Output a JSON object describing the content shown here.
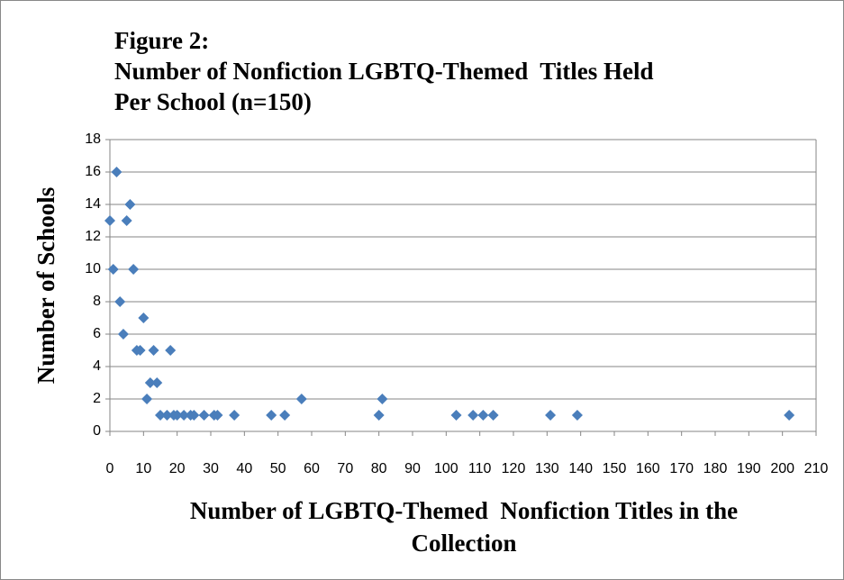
{
  "chart_data": {
    "type": "scatter",
    "title": [
      "Figure 2:",
      "Number of Nonfiction LGBTQ-Themed  Titles Held",
      "Per School (n=150)"
    ],
    "x_label": [
      "Number of LGBTQ-Themed  Nonfiction Titles in the",
      "Collection"
    ],
    "y_label": "Number of Schools",
    "color": "#4a7ebb",
    "grid": true,
    "x": [
      0,
      1,
      2,
      3,
      4,
      5,
      6,
      7,
      8,
      9,
      10,
      11,
      12,
      13,
      14,
      15,
      17,
      18,
      19,
      20,
      22,
      24,
      25,
      28,
      31,
      32,
      37,
      48,
      52,
      57,
      80,
      81,
      103,
      108,
      111,
      114,
      131,
      139,
      202
    ],
    "values": [
      13,
      10,
      16,
      8,
      6,
      13,
      14,
      10,
      5,
      5,
      7,
      2,
      3,
      5,
      3,
      1,
      1,
      5,
      1,
      1,
      1,
      1,
      1,
      1,
      1,
      1,
      1,
      1,
      1,
      2,
      1,
      2,
      1,
      1,
      1,
      1,
      1,
      1,
      1
    ],
    "xlim": [
      0,
      210
    ],
    "xticks": [
      0,
      10,
      20,
      30,
      40,
      50,
      60,
      70,
      80,
      90,
      100,
      110,
      120,
      130,
      140,
      150,
      160,
      170,
      180,
      190,
      200,
      210
    ],
    "ylim": [
      0,
      18
    ],
    "yticks": [
      0,
      2,
      4,
      6,
      8,
      10,
      12,
      14,
      16,
      18
    ]
  }
}
